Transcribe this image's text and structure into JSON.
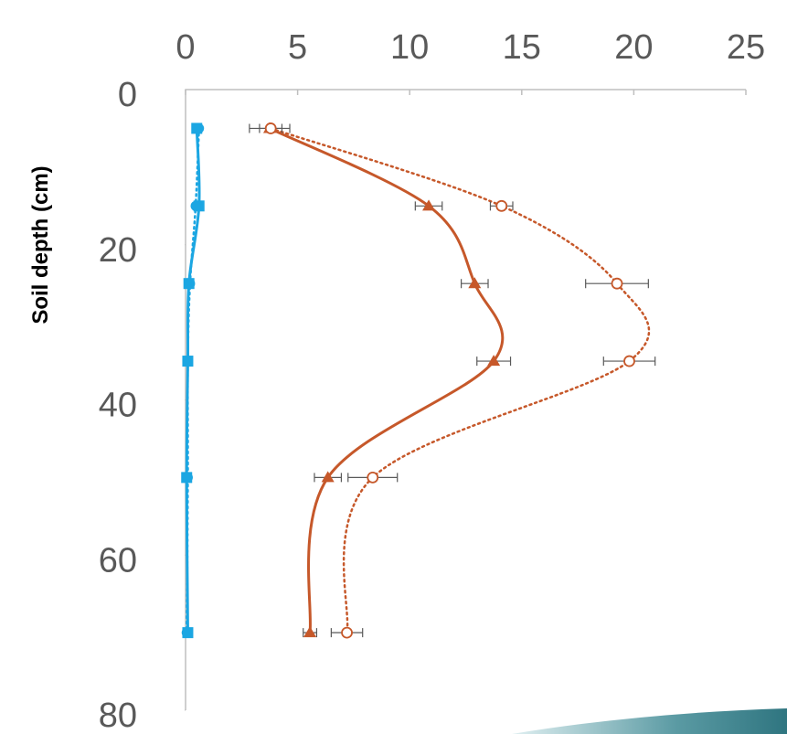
{
  "chart_data": {
    "type": "profile",
    "y_label": "Soil depth (cm)",
    "depth": [
      5,
      15,
      25,
      35,
      50,
      70
    ],
    "xlim": [
      0,
      25
    ],
    "xticks": [
      0,
      5,
      10,
      15,
      20,
      25
    ],
    "ylim": [
      0,
      80
    ],
    "yticks": [
      0,
      20,
      40,
      60,
      80
    ],
    "inverted_y": true,
    "x_axis_position": "top",
    "series": [
      {
        "color": "#1ba6e2",
        "marker": "square",
        "dashed": false,
        "values": [
          0.5,
          0.6,
          0.15,
          0.1,
          0.05,
          0.1
        ]
      },
      {
        "color": "#1ba6e2",
        "marker": "circle",
        "dashed": true,
        "values": [
          0.6,
          0.45,
          0.2,
          0.1,
          0.1,
          0.05
        ]
      },
      {
        "color": "#c6582a",
        "marker": "triangle",
        "dashed": false,
        "values": [
          3.75,
          10.85,
          12.9,
          13.75,
          6.35,
          5.55
        ],
        "errors": [
          0.9,
          0.6,
          0.6,
          0.75,
          0.6,
          0.3
        ]
      },
      {
        "color": "#c6582a",
        "marker": "open-circle",
        "dashed": true,
        "values": [
          3.8,
          14.1,
          19.25,
          19.8,
          8.35,
          7.2
        ],
        "errors": [
          0.5,
          0.5,
          1.4,
          1.15,
          1.1,
          0.7
        ]
      }
    ]
  }
}
